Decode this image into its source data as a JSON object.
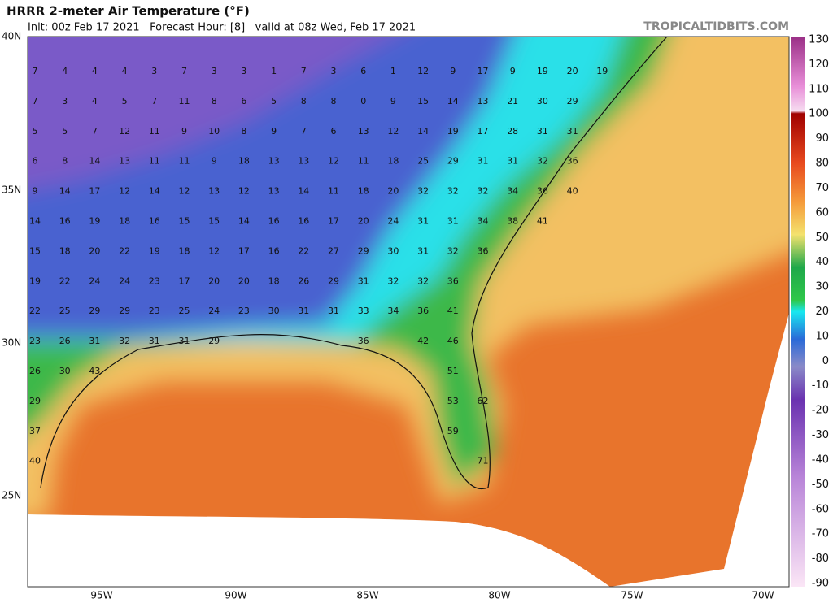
{
  "header": {
    "title": "HRRR 2-meter Air Temperature (°F)",
    "subtitle": "Init: 00z Feb 17 2021   Forecast Hour: [8]   valid at 08z Wed, Feb 17 2021",
    "watermark": "TROPICALTIDBITS.COM"
  },
  "map": {
    "lat_labels": [
      "40N",
      "35N",
      "30N",
      "25N"
    ],
    "lon_labels": [
      "95W",
      "90W",
      "85W",
      "80W",
      "75W",
      "70W"
    ],
    "stations": [
      [
        7,
        4,
        4,
        4,
        3,
        7,
        3,
        3,
        1,
        7,
        3,
        6,
        1,
        12,
        9,
        17,
        9,
        19,
        20,
        19
      ],
      [
        7,
        3,
        4,
        5,
        7,
        11,
        8,
        6,
        5,
        8,
        8,
        0,
        9,
        15,
        14,
        13,
        21,
        30,
        29
      ],
      [
        5,
        5,
        7,
        12,
        11,
        9,
        10,
        8,
        9,
        7,
        6,
        13,
        12,
        14,
        19,
        17,
        28,
        31,
        31
      ],
      [
        6,
        8,
        14,
        13,
        11,
        11,
        9,
        18,
        13,
        13,
        12,
        11,
        18,
        25,
        29,
        31,
        31,
        32,
        36
      ],
      [
        9,
        14,
        17,
        12,
        14,
        12,
        13,
        12,
        13,
        14,
        11,
        18,
        20,
        32,
        32,
        32,
        34,
        36,
        40
      ],
      [
        14,
        16,
        19,
        18,
        16,
        15,
        15,
        14,
        16,
        16,
        17,
        20,
        24,
        31,
        31,
        34,
        38,
        41
      ],
      [
        15,
        18,
        20,
        22,
        19,
        18,
        12,
        17,
        16,
        22,
        27,
        29,
        30,
        31,
        32,
        36
      ],
      [
        19,
        22,
        24,
        24,
        23,
        17,
        20,
        20,
        18,
        26,
        29,
        31,
        32,
        32,
        36
      ],
      [
        22,
        25,
        29,
        29,
        23,
        25,
        24,
        23,
        30,
        31,
        31,
        33,
        34,
        36,
        41
      ],
      [
        23,
        26,
        31,
        32,
        31,
        31,
        29,
        null,
        null,
        null,
        null,
        36,
        null,
        42,
        46
      ],
      [
        26,
        30,
        43,
        null,
        null,
        null,
        null,
        null,
        null,
        null,
        null,
        null,
        null,
        null,
        51
      ],
      [
        29,
        null,
        null,
        null,
        null,
        null,
        null,
        null,
        null,
        null,
        null,
        null,
        null,
        null,
        53,
        62
      ],
      [
        37,
        null,
        null,
        null,
        null,
        null,
        null,
        null,
        null,
        null,
        null,
        null,
        null,
        null,
        59
      ],
      [
        40,
        null,
        null,
        null,
        null,
        null,
        null,
        null,
        null,
        null,
        null,
        null,
        null,
        null,
        null,
        71
      ]
    ]
  },
  "colorbar": {
    "labels": [
      130,
      120,
      110,
      100,
      90,
      80,
      70,
      60,
      50,
      40,
      30,
      20,
      10,
      0,
      -10,
      -20,
      -30,
      -40,
      -50,
      -60,
      -70,
      -80,
      -90
    ]
  }
}
